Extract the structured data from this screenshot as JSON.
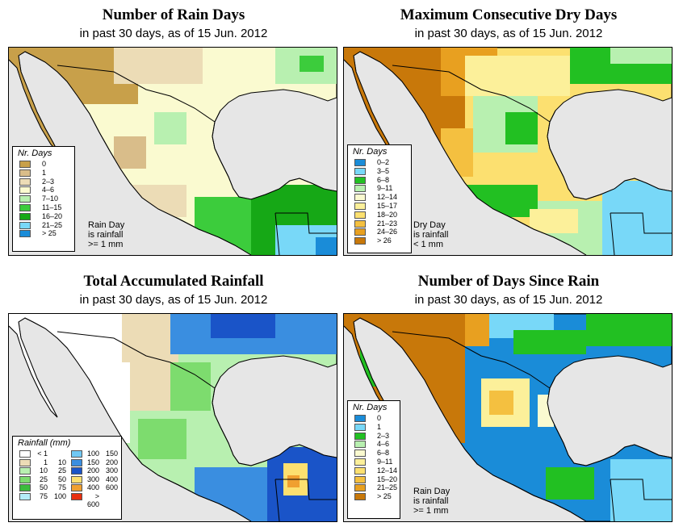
{
  "panels": [
    {
      "title": "Number of Rain Days",
      "subtitle": "in past 30 days, as of  15 Jun. 2012",
      "legend_title": "Nr. Days",
      "legend": [
        {
          "label": "0",
          "color": "#c8a04a"
        },
        {
          "label": "1",
          "color": "#d9bd8a"
        },
        {
          "label": "2–3",
          "color": "#ecdcb6"
        },
        {
          "label": "4–6",
          "color": "#fafad0"
        },
        {
          "label": "7–10",
          "color": "#b8f0b0"
        },
        {
          "label": "11–15",
          "color": "#3ccc3c"
        },
        {
          "label": "16–20",
          "color": "#16a816"
        },
        {
          "label": "21–25",
          "color": "#78d8f8"
        },
        {
          "label": "> 25",
          "color": "#1a8cd8"
        }
      ],
      "note": [
        "Rain Day",
        "is rainfall",
        ">= 1 mm"
      ]
    },
    {
      "title": "Maximum Consecutive Dry Days",
      "subtitle": "in past 30 days, as of  15 Jun. 2012",
      "legend_title": "Nr. Days",
      "legend": [
        {
          "label": "0–2",
          "color": "#1a8cd8"
        },
        {
          "label": "3–5",
          "color": "#78d8f8"
        },
        {
          "label": "6–8",
          "color": "#22c022"
        },
        {
          "label": "9–11",
          "color": "#b8f0b0"
        },
        {
          "label": "12–14",
          "color": "#fafad0"
        },
        {
          "label": "15–17",
          "color": "#fcf09a"
        },
        {
          "label": "18–20",
          "color": "#fce070"
        },
        {
          "label": "21–23",
          "color": "#f4c040"
        },
        {
          "label": "24–26",
          "color": "#e8a020"
        },
        {
          "label": "> 26",
          "color": "#c8780a"
        }
      ],
      "note": [
        "Dry Day",
        "is rainfall",
        "< 1 mm"
      ]
    },
    {
      "title": "Total Accumulated Rainfall",
      "subtitle": "in past 30 days, as of  15 Jun. 2012",
      "legend_title": "Rainfall (mm)",
      "legend_left": [
        {
          "a": "< 1",
          "b": "",
          "color": "#ffffff"
        },
        {
          "a": "1",
          "b": "10",
          "color": "#ecdcb6"
        },
        {
          "a": "10",
          "b": "25",
          "color": "#b8f0b0"
        },
        {
          "a": "25",
          "b": "50",
          "color": "#7ddc6e"
        },
        {
          "a": "50",
          "b": "75",
          "color": "#3cbc3c"
        },
        {
          "a": "75",
          "b": "100",
          "color": "#b4ecf8"
        }
      ],
      "legend_right": [
        {
          "a": "100",
          "b": "150",
          "color": "#70c8f4"
        },
        {
          "a": "150",
          "b": "200",
          "color": "#3a8ee0"
        },
        {
          "a": "200",
          "b": "300",
          "color": "#1a54c8"
        },
        {
          "a": "300",
          "b": "400",
          "color": "#fce070"
        },
        {
          "a": "400",
          "b": "600",
          "color": "#f0a030"
        },
        {
          "a": "> 600",
          "b": "",
          "color": "#e83010"
        }
      ]
    },
    {
      "title": "Number of Days Since Rain",
      "subtitle": "in past 30 days, as of  15 Jun. 2012",
      "legend_title": "Nr. Days",
      "legend": [
        {
          "label": "0",
          "color": "#1a8cd8"
        },
        {
          "label": "1",
          "color": "#78d8f8"
        },
        {
          "label": "2–3",
          "color": "#22c022"
        },
        {
          "label": "4–6",
          "color": "#b8f0b0"
        },
        {
          "label": "6–8",
          "color": "#fafad0"
        },
        {
          "label": "9–11",
          "color": "#fcf09a"
        },
        {
          "label": "12–14",
          "color": "#fce070"
        },
        {
          "label": "15–20",
          "color": "#f4c040"
        },
        {
          "label": "21–25",
          "color": "#e8a020"
        },
        {
          "label": "> 25",
          "color": "#c8780a"
        }
      ],
      "note": [
        "Rain Day",
        "is rainfall",
        ">= 1 mm"
      ]
    }
  ],
  "colors": {
    "ocean": "#e6e6e6",
    "border": "#000000",
    "land_default": "#fafad0"
  }
}
